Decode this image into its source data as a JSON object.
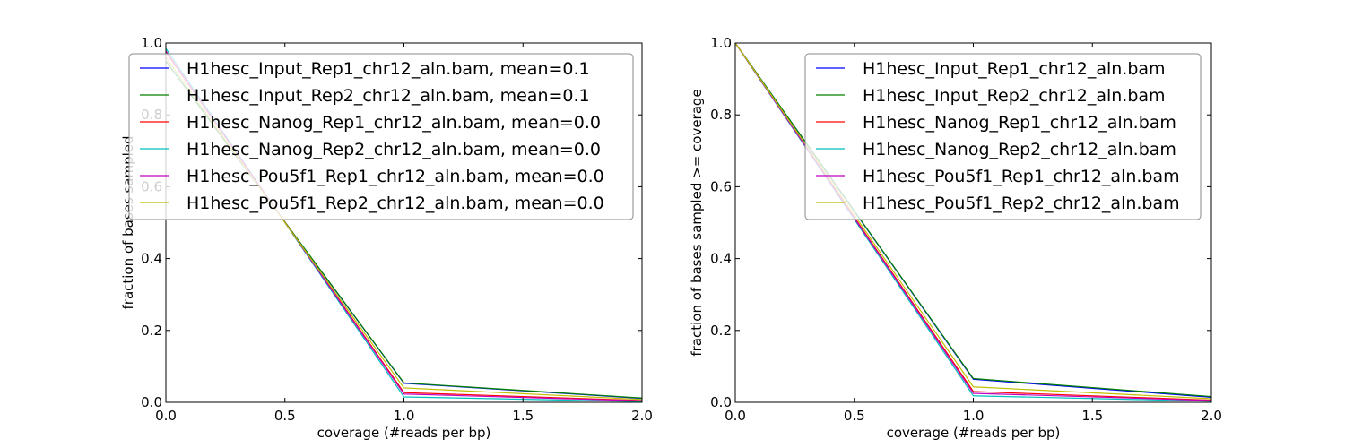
{
  "chart_data": [
    {
      "type": "line",
      "xlabel": "coverage (#reads per bp)",
      "ylabel": "fraction of bases sampled",
      "xlim": [
        0.0,
        2.0
      ],
      "ylim": [
        0.0,
        1.0
      ],
      "x_ticks": [
        "0.0",
        "0.5",
        "1.0",
        "1.5",
        "2.0"
      ],
      "y_ticks": [
        "0.0",
        "0.2",
        "0.4",
        "0.6",
        "0.8",
        "1.0"
      ],
      "legend_position": "top-right",
      "x": [
        0,
        1,
        2
      ],
      "series": [
        {
          "name": "H1hesc_Input_Rep1_chr12_aln.bam, mean=0.1",
          "color": "#0000ff",
          "values": [
            0.95,
            0.053,
            0.011
          ]
        },
        {
          "name": "H1hesc_Input_Rep2_chr12_aln.bam, mean=0.1",
          "color": "#008000",
          "values": [
            0.95,
            0.054,
            0.012
          ]
        },
        {
          "name": "H1hesc_Nanog_Rep1_chr12_aln.bam, mean=0.0",
          "color": "#ff0000",
          "values": [
            0.975,
            0.027,
            0.005
          ]
        },
        {
          "name": "H1hesc_Nanog_Rep2_chr12_aln.bam, mean=0.0",
          "color": "#00bfbf",
          "values": [
            0.985,
            0.015,
            0.002
          ]
        },
        {
          "name": "H1hesc_Pou5f1_Rep1_chr12_aln.bam, mean=0.0",
          "color": "#bf00bf",
          "values": [
            0.978,
            0.023,
            0.004
          ]
        },
        {
          "name": "H1hesc_Pou5f1_Rep2_chr12_aln.bam, mean=0.0",
          "color": "#bfbf00",
          "values": [
            0.96,
            0.04,
            0.008
          ]
        }
      ]
    },
    {
      "type": "line",
      "xlabel": "coverage (#reads per bp)",
      "ylabel": "fraction of bases sampled >= coverage",
      "xlim": [
        0.0,
        2.0
      ],
      "ylim": [
        0.0,
        1.0
      ],
      "x_ticks": [
        "0.0",
        "0.5",
        "1.0",
        "1.5",
        "2.0"
      ],
      "y_ticks": [
        "0.0",
        "0.2",
        "0.4",
        "0.6",
        "0.8",
        "1.0"
      ],
      "legend_position": "top-right",
      "x": [
        0,
        1,
        2
      ],
      "series": [
        {
          "name": "H1hesc_Input_Rep1_chr12_aln.bam",
          "color": "#0000ff",
          "values": [
            1.0,
            0.064,
            0.014
          ]
        },
        {
          "name": "H1hesc_Input_Rep2_chr12_aln.bam",
          "color": "#008000",
          "values": [
            1.0,
            0.066,
            0.016
          ]
        },
        {
          "name": "H1hesc_Nanog_Rep1_chr12_aln.bam",
          "color": "#ff0000",
          "values": [
            1.0,
            0.03,
            0.006
          ]
        },
        {
          "name": "H1hesc_Nanog_Rep2_chr12_aln.bam",
          "color": "#00bfbf",
          "values": [
            1.0,
            0.018,
            0.003
          ]
        },
        {
          "name": "H1hesc_Pou5f1_Rep1_chr12_aln.bam",
          "color": "#bf00bf",
          "values": [
            1.0,
            0.025,
            0.005
          ]
        },
        {
          "name": "H1hesc_Pou5f1_Rep2_chr12_aln.bam",
          "color": "#bfbf00",
          "values": [
            1.0,
            0.043,
            0.01
          ]
        }
      ]
    }
  ]
}
